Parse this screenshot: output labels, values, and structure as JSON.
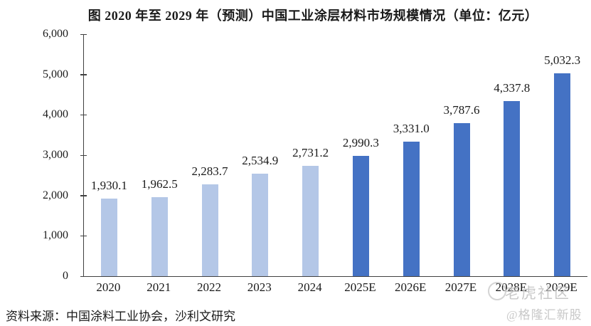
{
  "title": "图  2020 年至 2029 年（预测）中国工业涂层材料市场规模情况（单位：亿元）",
  "source": "资料来源：中国涂料工业协会，沙利文研究",
  "watermarks": [
    "老虎社区",
    "@格隆汇新股"
  ],
  "colors": {
    "historical_bar": "#b4c7e7",
    "forecast_bar": "#4472c4",
    "axis": "#404040",
    "text": "#1a1a1a",
    "watermark": "#bfbfbf"
  },
  "chart_data": {
    "type": "bar",
    "title": "图  2020 年至 2029 年（预测）中国工业涂层材料市场规模情况（单位：亿元）",
    "unit": "亿元",
    "categories": [
      "2020",
      "2021",
      "2022",
      "2023",
      "2024",
      "2025E",
      "2026E",
      "2027E",
      "2028E",
      "2029E"
    ],
    "series": [
      {
        "name": "中国工业涂层材料市场规模",
        "values": [
          1930.1,
          1962.5,
          2283.7,
          2534.9,
          2731.2,
          2990.3,
          3331.0,
          3787.6,
          4337.8,
          5032.3
        ]
      }
    ],
    "forecast_start_index": 5,
    "xlabel": "",
    "ylabel": "",
    "ylim": [
      0,
      6000
    ],
    "ytick_step": 1000,
    "grid": false,
    "legend": false
  }
}
